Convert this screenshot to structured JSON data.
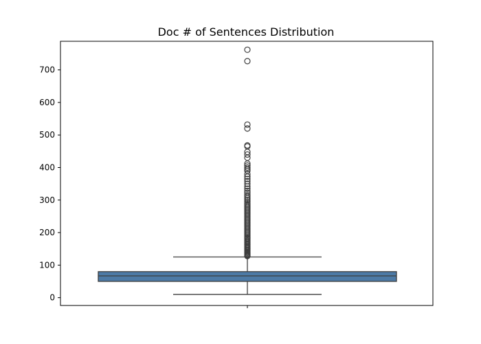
{
  "chart_data": {
    "type": "box",
    "title": "Doc # of Sentences Distribution",
    "xlabel": "",
    "ylabel": "",
    "ylim": [
      -24,
      788
    ],
    "yticks": [
      0,
      100,
      200,
      300,
      400,
      500,
      600,
      700
    ],
    "grid": false,
    "box": {
      "whisker_low": 10,
      "q1": 50,
      "median": 67,
      "q3": 80,
      "whisker_high": 125,
      "fill_color": "#4c7aa6",
      "line_color": "#3d3d3d"
    },
    "outliers": [
      128,
      130,
      132,
      135,
      138,
      140,
      143,
      146,
      150,
      153,
      156,
      160,
      163,
      166,
      170,
      173,
      176,
      180,
      183,
      186,
      190,
      194,
      198,
      202,
      206,
      210,
      214,
      218,
      222,
      226,
      230,
      234,
      238,
      242,
      246,
      250,
      254,
      258,
      262,
      266,
      270,
      274,
      278,
      282,
      286,
      290,
      295,
      300,
      305,
      310,
      315,
      322,
      328,
      335,
      342,
      350,
      358,
      365,
      372,
      380,
      390,
      395,
      400,
      406,
      412,
      430,
      440,
      448,
      465,
      468,
      520,
      532,
      727,
      762
    ]
  }
}
